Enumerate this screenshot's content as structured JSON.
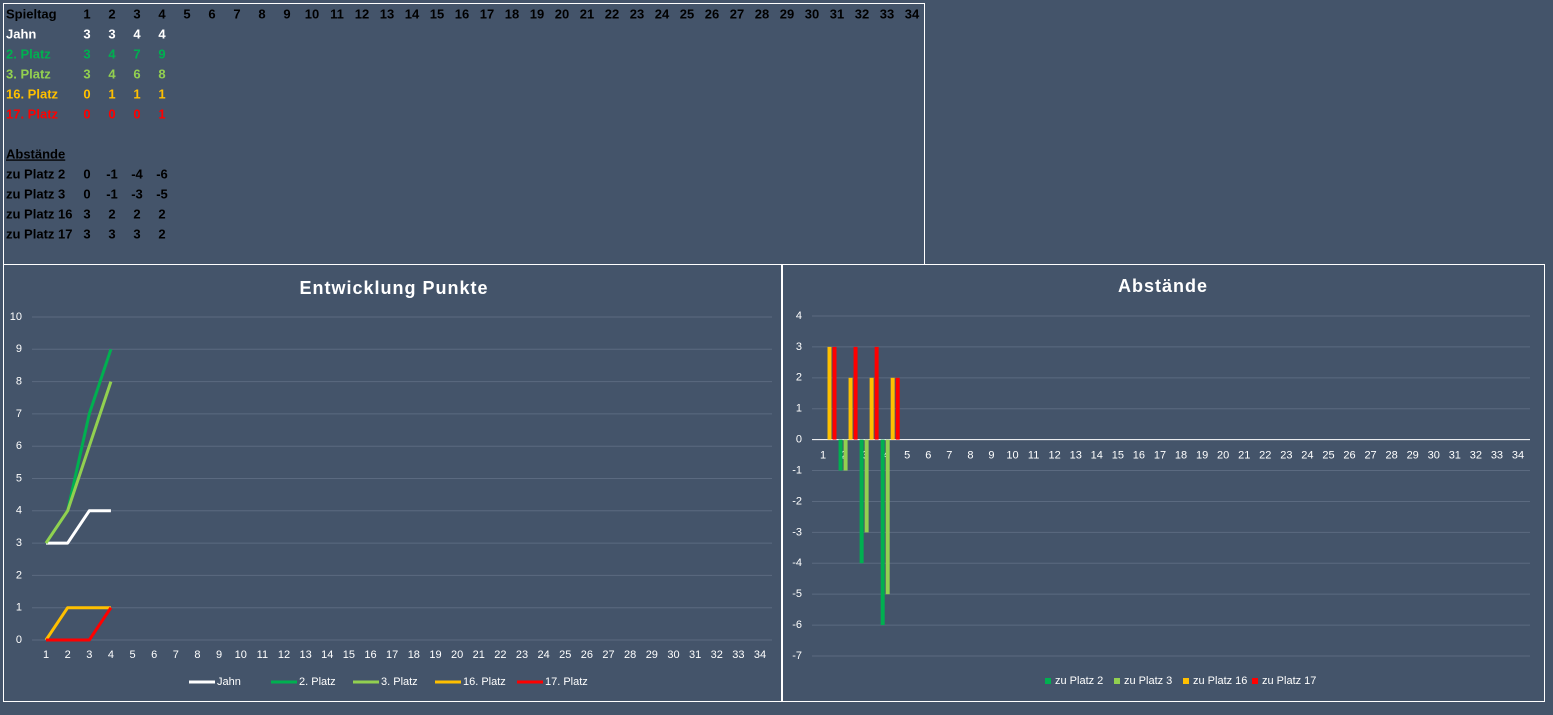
{
  "table": {
    "header": [
      "Spieltag",
      1,
      2,
      3,
      4,
      5,
      6,
      7,
      8,
      9,
      10,
      11,
      12,
      13,
      14,
      15,
      16,
      17,
      18,
      19,
      20,
      21,
      22,
      23,
      24,
      25,
      26,
      27,
      28,
      29,
      30,
      31,
      32,
      33,
      34
    ],
    "rows": [
      {
        "label": "Jahn",
        "color": "#ffffff",
        "values": [
          3,
          3,
          4,
          4
        ]
      },
      {
        "label": "2. Platz",
        "color": "#00b050",
        "values": [
          3,
          4,
          7,
          9
        ]
      },
      {
        "label": "3. Platz",
        "color": "#92d050",
        "values": [
          3,
          4,
          6,
          8
        ]
      },
      {
        "label": "16. Platz",
        "color": "#ffc000",
        "values": [
          0,
          1,
          1,
          1
        ]
      },
      {
        "label": "17. Platz",
        "color": "#ff0000",
        "values": [
          0,
          0,
          0,
          1
        ]
      }
    ],
    "section": "Abstände",
    "diff_rows": [
      {
        "label": "zu Platz 2",
        "values": [
          0,
          -1,
          -4,
          -6
        ]
      },
      {
        "label": "zu Platz 3",
        "values": [
          0,
          -1,
          -3,
          -5
        ]
      },
      {
        "label": "zu Platz 16",
        "values": [
          3,
          2,
          2,
          2
        ]
      },
      {
        "label": "zu Platz 17",
        "values": [
          3,
          3,
          3,
          2
        ]
      }
    ]
  },
  "chart_data": [
    {
      "type": "line",
      "title": "Entwicklung Punkte",
      "categories": [
        1,
        2,
        3,
        4,
        5,
        6,
        7,
        8,
        9,
        10,
        11,
        12,
        13,
        14,
        15,
        16,
        17,
        18,
        19,
        20,
        21,
        22,
        23,
        24,
        25,
        26,
        27,
        28,
        29,
        30,
        31,
        32,
        33,
        34
      ],
      "ylim": [
        0,
        10
      ],
      "yticks": [
        0,
        1,
        2,
        3,
        4,
        5,
        6,
        7,
        8,
        9,
        10
      ],
      "grid": true,
      "legend": "bottom",
      "series": [
        {
          "name": "Jahn",
          "color": "#ffffff",
          "values": [
            3,
            3,
            4,
            4,
            null,
            null,
            null,
            null,
            null,
            null,
            null,
            null,
            null,
            null,
            null,
            null,
            null,
            null,
            null,
            null,
            null,
            null,
            null,
            null,
            null,
            null,
            null,
            null,
            null,
            null,
            null,
            null,
            null,
            null
          ]
        },
        {
          "name": "2. Platz",
          "color": "#00b050",
          "values": [
            3,
            4,
            7,
            9,
            null,
            null,
            null,
            null,
            null,
            null,
            null,
            null,
            null,
            null,
            null,
            null,
            null,
            null,
            null,
            null,
            null,
            null,
            null,
            null,
            null,
            null,
            null,
            null,
            null,
            null,
            null,
            null,
            null,
            null
          ]
        },
        {
          "name": "3. Platz",
          "color": "#92d050",
          "values": [
            3,
            4,
            6,
            8,
            null,
            null,
            null,
            null,
            null,
            null,
            null,
            null,
            null,
            null,
            null,
            null,
            null,
            null,
            null,
            null,
            null,
            null,
            null,
            null,
            null,
            null,
            null,
            null,
            null,
            null,
            null,
            null,
            null,
            null
          ]
        },
        {
          "name": "16. Platz",
          "color": "#ffc000",
          "values": [
            0,
            1,
            1,
            1,
            null,
            null,
            null,
            null,
            null,
            null,
            null,
            null,
            null,
            null,
            null,
            null,
            null,
            null,
            null,
            null,
            null,
            null,
            null,
            null,
            null,
            null,
            null,
            null,
            null,
            null,
            null,
            null,
            null,
            null
          ]
        },
        {
          "name": "17. Platz",
          "color": "#ff0000",
          "values": [
            0,
            0,
            0,
            1,
            null,
            null,
            null,
            null,
            null,
            null,
            null,
            null,
            null,
            null,
            null,
            null,
            null,
            null,
            null,
            null,
            null,
            null,
            null,
            null,
            null,
            null,
            null,
            null,
            null,
            null,
            null,
            null,
            null,
            null
          ]
        }
      ]
    },
    {
      "type": "bar",
      "title": "Abstände",
      "categories": [
        1,
        2,
        3,
        4,
        5,
        6,
        7,
        8,
        9,
        10,
        11,
        12,
        13,
        14,
        15,
        16,
        17,
        18,
        19,
        20,
        21,
        22,
        23,
        24,
        25,
        26,
        27,
        28,
        29,
        30,
        31,
        32,
        33,
        34
      ],
      "ylim": [
        -7,
        4
      ],
      "yticks": [
        -7,
        -6,
        -5,
        -4,
        -3,
        -2,
        -1,
        0,
        1,
        2,
        3,
        4
      ],
      "grid": true,
      "legend": "bottom",
      "series": [
        {
          "name": "zu Platz 2",
          "color": "#00b050",
          "values": [
            0,
            -1,
            -4,
            -6,
            null,
            null,
            null,
            null,
            null,
            null,
            null,
            null,
            null,
            null,
            null,
            null,
            null,
            null,
            null,
            null,
            null,
            null,
            null,
            null,
            null,
            null,
            null,
            null,
            null,
            null,
            null,
            null,
            null,
            null
          ]
        },
        {
          "name": "zu Platz 3",
          "color": "#92d050",
          "values": [
            0,
            -1,
            -3,
            -5,
            null,
            null,
            null,
            null,
            null,
            null,
            null,
            null,
            null,
            null,
            null,
            null,
            null,
            null,
            null,
            null,
            null,
            null,
            null,
            null,
            null,
            null,
            null,
            null,
            null,
            null,
            null,
            null,
            null,
            null
          ]
        },
        {
          "name": "zu Platz 16",
          "color": "#ffc000",
          "values": [
            3,
            2,
            2,
            2,
            null,
            null,
            null,
            null,
            null,
            null,
            null,
            null,
            null,
            null,
            null,
            null,
            null,
            null,
            null,
            null,
            null,
            null,
            null,
            null,
            null,
            null,
            null,
            null,
            null,
            null,
            null,
            null,
            null,
            null
          ]
        },
        {
          "name": "zu Platz 17",
          "color": "#ff0000",
          "values": [
            3,
            3,
            3,
            2,
            null,
            null,
            null,
            null,
            null,
            null,
            null,
            null,
            null,
            null,
            null,
            null,
            null,
            null,
            null,
            null,
            null,
            null,
            null,
            null,
            null,
            null,
            null,
            null,
            null,
            null,
            null,
            null,
            null,
            null
          ]
        }
      ]
    }
  ]
}
